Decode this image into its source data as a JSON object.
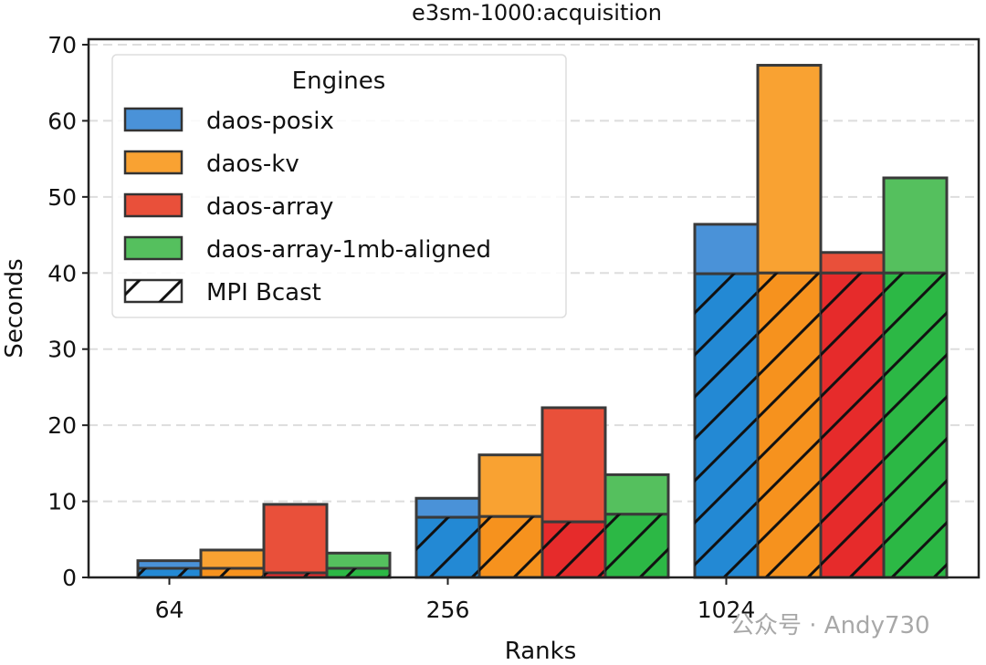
{
  "chart_data": {
    "type": "bar",
    "stacked": true,
    "title": "e3sm-1000:acquisition",
    "xlabel": "Ranks",
    "ylabel": "Seconds",
    "categories": [
      "64",
      "256",
      "1024"
    ],
    "ylim": [
      0,
      70
    ],
    "yticks": [
      0,
      10,
      20,
      30,
      40,
      50,
      60,
      70
    ],
    "grid": "horizontal dashed",
    "legend": {
      "title": "Engines",
      "placement": "top-left",
      "entries": [
        "daos-posix",
        "daos-kv",
        "daos-array",
        "daos-array-1mb-aligned",
        "MPI Bcast"
      ]
    },
    "series": [
      {
        "name": "daos-posix",
        "color": "#4a92d8",
        "bcast_color": "#2389d4",
        "mpi_bcast": [
          1.2,
          7.9,
          39.9
        ],
        "total": [
          2.2,
          10.4,
          46.4
        ]
      },
      {
        "name": "daos-kv",
        "color": "#f9a232",
        "bcast_color": "#f6921e",
        "mpi_bcast": [
          1.2,
          8.0,
          40.0
        ],
        "total": [
          3.6,
          16.1,
          67.3
        ]
      },
      {
        "name": "daos-array",
        "color": "#e9503a",
        "bcast_color": "#e62b2b",
        "mpi_bcast": [
          0.6,
          7.3,
          40.0
        ],
        "total": [
          9.6,
          22.3,
          42.7
        ]
      },
      {
        "name": "daos-array-1mb-aligned",
        "color": "#55c05e",
        "bcast_color": "#2cb845",
        "mpi_bcast": [
          1.2,
          8.3,
          40.0
        ],
        "total": [
          3.2,
          13.5,
          52.5
        ]
      }
    ]
  },
  "watermark": "公众号 · Andy730"
}
